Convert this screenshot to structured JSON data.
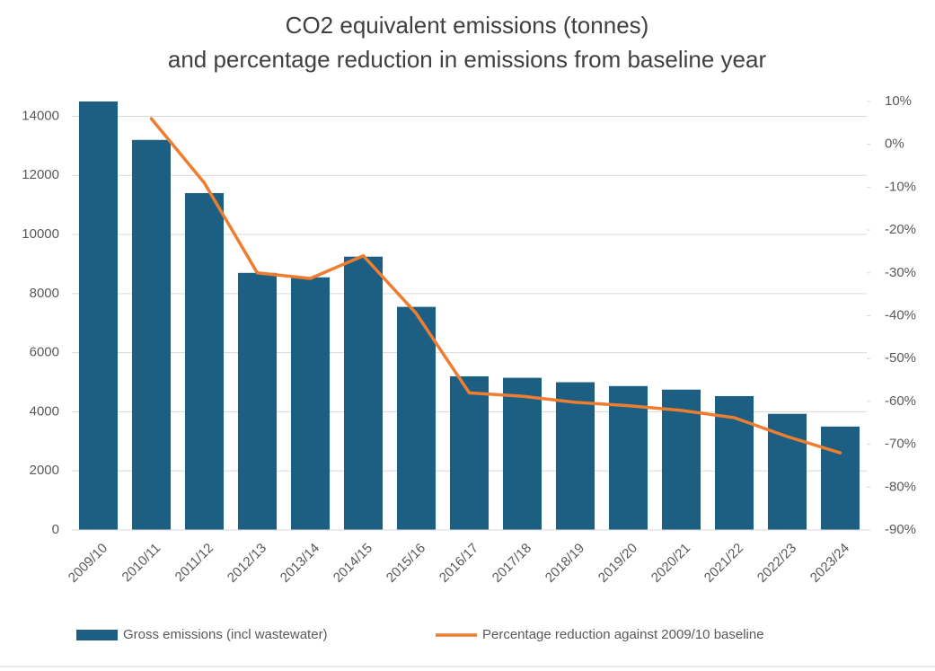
{
  "chart_data": {
    "type": "bar-line",
    "title": [
      "CO2 equivalent emissions (tonnes)",
      "and percentage reduction in emissions from baseline year"
    ],
    "categories": [
      "2009/10",
      "2010/11",
      "2011/12",
      "2012/13",
      "2013/14",
      "2014/15",
      "2015/16",
      "2016/17",
      "2017/18",
      "2018/19",
      "2019/20",
      "2020/21",
      "2021/22",
      "2022/23",
      "2023/24"
    ],
    "series": [
      {
        "name": "Gross emissions (incl wastewater)",
        "type": "bar",
        "color": "#1c5f83",
        "values": [
          14500,
          13200,
          11400,
          8700,
          8550,
          9250,
          7550,
          5200,
          5150,
          5000,
          4870,
          4750,
          4530,
          3930,
          3500
        ]
      },
      {
        "name": "Percentage reduction against 2009/10 baseline",
        "type": "line",
        "axis": "y2",
        "color": "#ed7d31",
        "values": [
          null,
          6,
          -9,
          -30,
          -31.3,
          -26,
          -39.5,
          -58,
          -58.8,
          -60.2,
          -61,
          -62.1,
          -63.8,
          -68.2,
          -72
        ]
      }
    ],
    "ylim": [
      0,
      14500
    ],
    "yticks": [
      0,
      2000,
      4000,
      6000,
      8000,
      10000,
      12000,
      14000
    ],
    "y2lim": [
      -90,
      10
    ],
    "y2ticks": [
      {
        "value": 10,
        "label": "10%"
      },
      {
        "value": 0,
        "label": "0%"
      },
      {
        "value": -10,
        "label": "-10%"
      },
      {
        "value": -20,
        "label": "-20%"
      },
      {
        "value": -30,
        "label": "-30%"
      },
      {
        "value": -40,
        "label": "-40%"
      },
      {
        "value": -50,
        "label": "-50%"
      },
      {
        "value": -60,
        "label": "-60%"
      },
      {
        "value": -70,
        "label": "-70%"
      },
      {
        "value": -80,
        "label": "-80%"
      },
      {
        "value": -90,
        "label": "-90%"
      }
    ],
    "grid": true,
    "legend": "bottom"
  }
}
